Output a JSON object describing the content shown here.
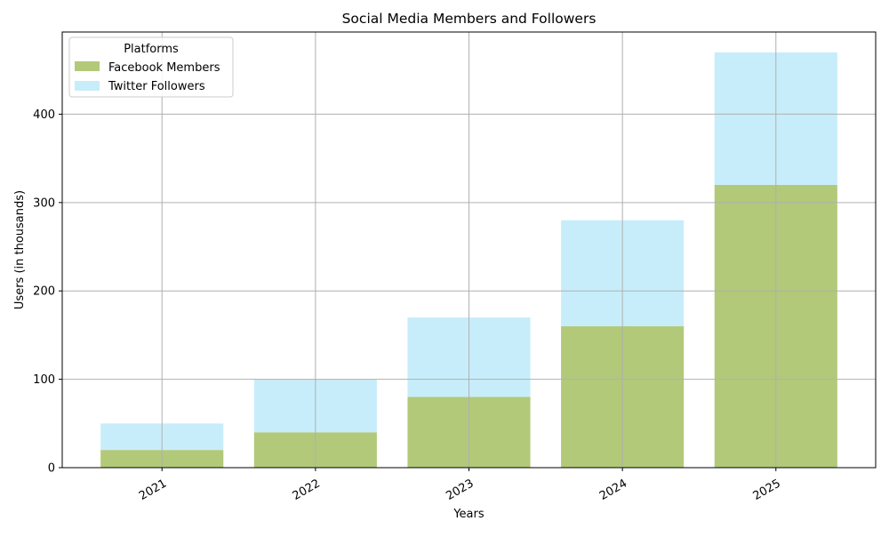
{
  "chart_data": {
    "type": "bar",
    "stacked": true,
    "title": "Social Media Members and Followers",
    "xlabel": "Years",
    "ylabel": "Users (in thousands)",
    "categories": [
      "2021",
      "2022",
      "2023",
      "2024",
      "2025"
    ],
    "series": [
      {
        "name": "Facebook Members",
        "values": [
          20,
          40,
          80,
          160,
          320
        ],
        "color": "#b2c979"
      },
      {
        "name": "Twitter Followers",
        "values": [
          30,
          60,
          90,
          120,
          150
        ],
        "color": "#c8edfa"
      }
    ],
    "ylim": [
      0,
      493
    ],
    "yticks": [
      0,
      100,
      200,
      300,
      400
    ],
    "grid": true,
    "legend": {
      "title": "Platforms",
      "position": "top-left"
    }
  }
}
